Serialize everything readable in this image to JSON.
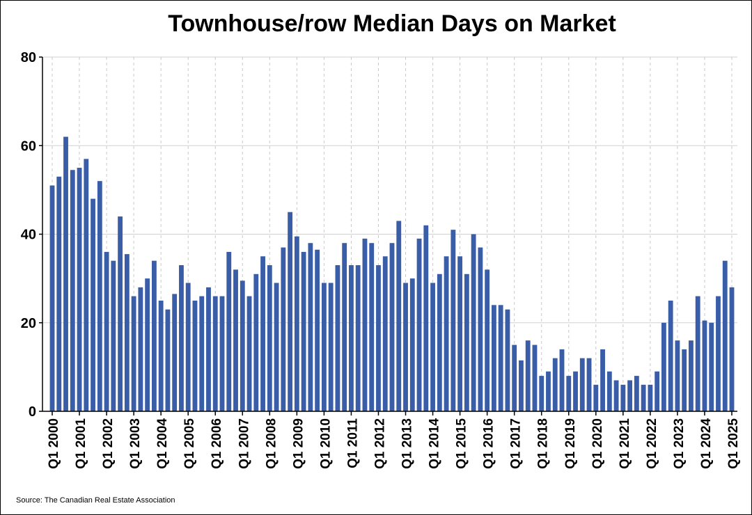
{
  "chart_data": {
    "type": "bar",
    "title": "Townhouse/row Median Days on Market",
    "xlabel": "",
    "ylabel": "",
    "ylim": [
      0,
      80
    ],
    "yticks": [
      0,
      20,
      40,
      60,
      80
    ],
    "grid": true,
    "legend": "none",
    "bar_color": "#3a5da8",
    "x_tick_labels": [
      "Q1 2000",
      "Q1 2001",
      "Q1 2002",
      "Q1 2003",
      "Q1 2004",
      "Q1 2005",
      "Q1 2006",
      "Q1 2007",
      "Q1 2008",
      "Q1 2009",
      "Q1 2010",
      "Q1 2011",
      "Q1 2012",
      "Q1 2013",
      "Q1 2014",
      "Q1 2015",
      "Q1 2016",
      "Q1 2017",
      "Q1 2018",
      "Q1 2019",
      "Q1 2020",
      "Q1 2021",
      "Q1 2022",
      "Q1 2023",
      "Q1 2024",
      "Q1 2025"
    ],
    "values": [
      51,
      53,
      62,
      54.5,
      55,
      57,
      48,
      52,
      36,
      34,
      44,
      35.5,
      26,
      28,
      30,
      34,
      25,
      23,
      26.5,
      33,
      29,
      25,
      26,
      28,
      26,
      26,
      36,
      32,
      29.5,
      26,
      31,
      35,
      33,
      29,
      37,
      45,
      39.5,
      36,
      38,
      36.5,
      29,
      29,
      33,
      38,
      33,
      33,
      39,
      38,
      33,
      35,
      38,
      43,
      29,
      30,
      39,
      42,
      29,
      31,
      35,
      41,
      35,
      31,
      40,
      37,
      32,
      24,
      24,
      23,
      15,
      11.5,
      16,
      15,
      8,
      9,
      12,
      14,
      8,
      9,
      12,
      12,
      6,
      14,
      9,
      7,
      6,
      7,
      8,
      6,
      6,
      9,
      20,
      25,
      16,
      14,
      16,
      26,
      20.5,
      20,
      26,
      34,
      28
    ]
  },
  "source": "Source: The Canadian Real Estate Association"
}
